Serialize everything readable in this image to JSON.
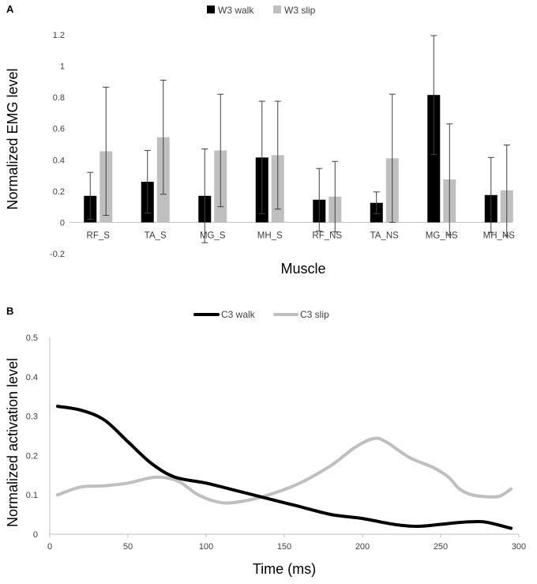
{
  "chart_data": [
    {
      "panel_label": "A",
      "type": "bar",
      "xlabel": "Muscle",
      "ylabel": "Normalized EMG level",
      "ylim": [
        -0.2,
        1.2
      ],
      "yticks": [
        -0.2,
        0,
        0.2,
        0.4,
        0.6,
        0.8,
        1,
        1.2
      ],
      "ytick_labels": [
        "-0.2",
        "0",
        "0.2",
        "0.4",
        "0.6",
        "0.8",
        "1",
        "1.2"
      ],
      "legend_position": "top-center",
      "categories": [
        "RF_S",
        "TA_S",
        "MG_S",
        "MH_S",
        "RF_NS",
        "TA_NS",
        "MG_NS",
        "MH_NS"
      ],
      "series": [
        {
          "name": "W3 walk",
          "color": "#000000",
          "values": [
            0.17,
            0.26,
            0.17,
            0.415,
            0.145,
            0.125,
            0.815,
            0.175
          ],
          "error": [
            0.15,
            0.2,
            0.3,
            0.36,
            0.2,
            0.07,
            0.38,
            0.24
          ]
        },
        {
          "name": "W3 slip",
          "color": "#bfbfbf",
          "values": [
            0.455,
            0.545,
            0.46,
            0.43,
            0.165,
            0.41,
            0.275,
            0.205
          ],
          "error": [
            0.41,
            0.365,
            0.36,
            0.345,
            0.225,
            0.41,
            0.355,
            0.29
          ]
        }
      ]
    },
    {
      "panel_label": "B",
      "type": "line",
      "xlabel": "Time (ms)",
      "ylabel": "Normalized activation level",
      "xlim": [
        0,
        300
      ],
      "ylim": [
        0,
        0.5
      ],
      "xticks": [
        0,
        50,
        100,
        150,
        200,
        250,
        300
      ],
      "xtick_labels": [
        "0",
        "50",
        "100",
        "150",
        "200",
        "250",
        "300"
      ],
      "yticks": [
        0,
        0.1,
        0.2,
        0.3,
        0.4,
        0.5
      ],
      "ytick_labels": [
        "0",
        "0.1",
        "0.2",
        "0.3",
        "0.4",
        "0.5"
      ],
      "legend_position": "top-center",
      "series": [
        {
          "name": "C3 walk",
          "color": "#000000",
          "x": [
            5,
            20,
            35,
            50,
            65,
            80,
            100,
            120,
            140,
            160,
            180,
            200,
            220,
            235,
            250,
            262,
            272,
            280,
            295
          ],
          "y": [
            0.325,
            0.315,
            0.29,
            0.235,
            0.18,
            0.145,
            0.13,
            0.11,
            0.09,
            0.07,
            0.05,
            0.04,
            0.025,
            0.02,
            0.025,
            0.03,
            0.032,
            0.03,
            0.015
          ]
        },
        {
          "name": "C3 slip",
          "color": "#bfbfbf",
          "x": [
            5,
            20,
            35,
            50,
            68,
            82,
            95,
            110,
            125,
            140,
            160,
            180,
            195,
            207,
            215,
            230,
            245,
            255,
            262,
            270,
            280,
            288,
            295
          ],
          "y": [
            0.1,
            0.12,
            0.123,
            0.13,
            0.145,
            0.135,
            0.1,
            0.08,
            0.085,
            0.1,
            0.13,
            0.175,
            0.22,
            0.243,
            0.235,
            0.195,
            0.17,
            0.145,
            0.115,
            0.1,
            0.095,
            0.097,
            0.115
          ]
        }
      ]
    }
  ]
}
